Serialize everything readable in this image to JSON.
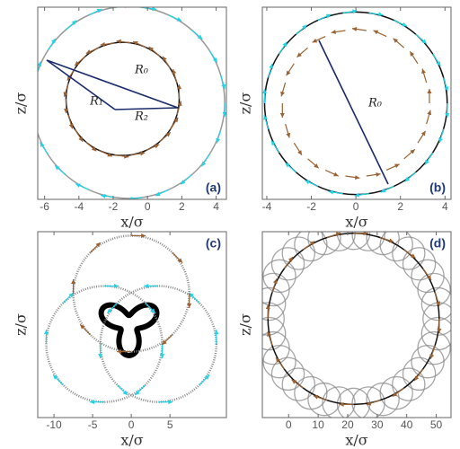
{
  "chart_data": [
    {
      "type": "orbit",
      "panel_label": "(a)",
      "xlabel": "x/σ",
      "ylabel": "z/σ",
      "xlim": [
        -6.4,
        4.6
      ],
      "ylim": [
        -5.6,
        5.5
      ],
      "xticks": [
        -6,
        -4,
        -2,
        0,
        2,
        4
      ],
      "circles": [
        {
          "cx": -1.1,
          "cy": 0,
          "r": 5.6,
          "color": "#999999",
          "arrows": "#22d3e6"
        },
        {
          "cx": -1.45,
          "cy": 0.2,
          "r": 3.3,
          "color": "#111111",
          "arrows": "#9a6233"
        }
      ],
      "annotations": [
        "R₀",
        "R₁",
        "R₂"
      ]
    },
    {
      "type": "orbit",
      "panel_label": "(b)",
      "xlabel": "x/σ",
      "ylabel": "z/σ",
      "xlim": [
        -4.2,
        4.27
      ],
      "ylim": [
        -4.3,
        4.3
      ],
      "xticks": [
        -4,
        -2,
        0,
        2,
        4
      ],
      "circles": [
        {
          "cx": 0,
          "cy": 0,
          "r": 4.1,
          "color": "#111111",
          "arrows": "#22d3e6"
        },
        {
          "cx": 0,
          "cy": 0,
          "r": 3.3,
          "color": "none",
          "arrows": "#9a6233"
        }
      ],
      "annotations": [
        "R₀"
      ]
    },
    {
      "type": "orbit",
      "panel_label": "(c)",
      "xlabel": "x/σ",
      "ylabel": "z/σ",
      "xlim": [
        -12.1,
        12.3
      ],
      "ylim": [
        -12,
        12
      ],
      "xticks": [
        -10,
        -5,
        0,
        5
      ],
      "circles": [
        {
          "cx": -3.5,
          "cy": -2.5,
          "r": 7.5,
          "color": "#888888",
          "arrows": "#22d3e6"
        },
        {
          "cx": 3.5,
          "cy": -2.5,
          "r": 7.5,
          "color": "#888888",
          "arrows": "#22d3e6"
        },
        {
          "cx": 0,
          "cy": 4,
          "r": 7.5,
          "color": "#888888",
          "arrows": "#9a6233"
        }
      ],
      "annotations": []
    },
    {
      "type": "orbit",
      "panel_label": "(d)",
      "xlabel": "x/σ",
      "ylabel": "z/σ",
      "xlim": [
        -8.9,
        55
      ],
      "ylim": [
        -33.3,
        29.4
      ],
      "xticks": [
        0,
        10,
        20,
        30,
        40,
        50
      ],
      "circles": [
        {
          "cx": 22,
          "cy": 0,
          "r": 29,
          "color": "#111111",
          "arrows": "#9a6233"
        }
      ],
      "ring": {
        "cx": 22,
        "cy": 0,
        "r": 29,
        "count": 36,
        "small_r": 5.5,
        "color": "#888888"
      },
      "annotations": []
    }
  ]
}
